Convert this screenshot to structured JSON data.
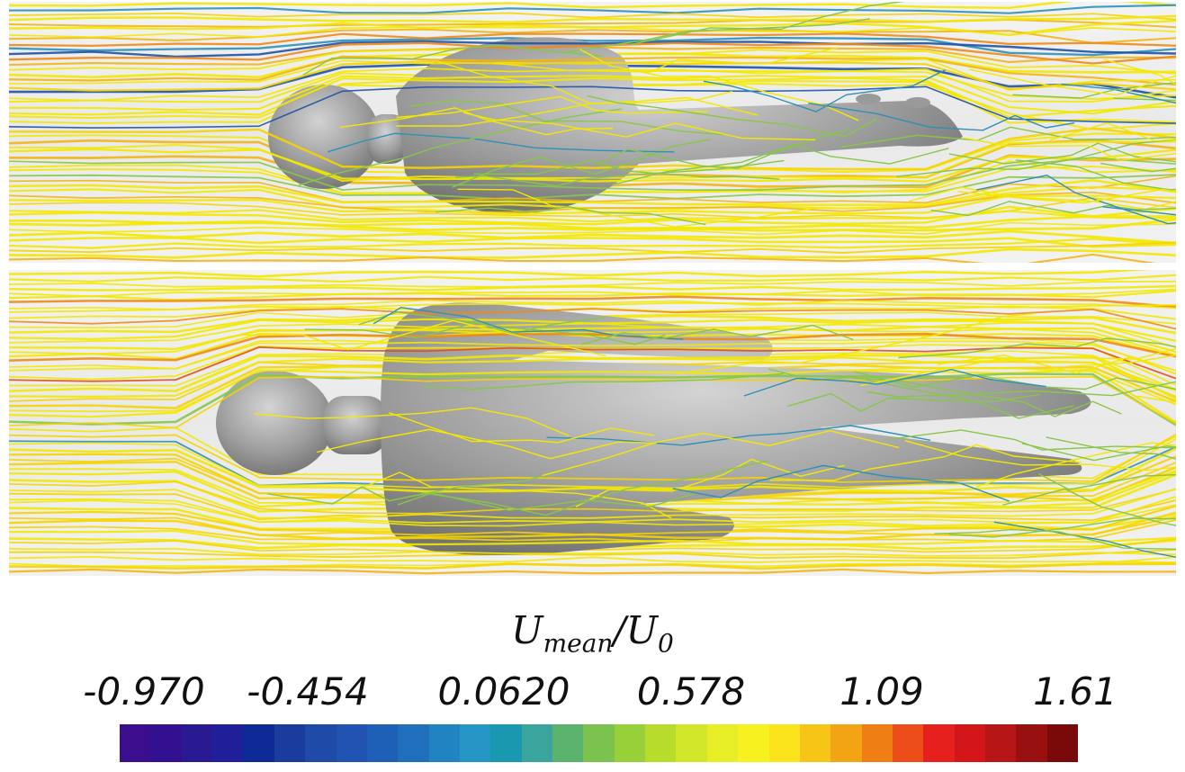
{
  "colorbar": {
    "title_main": "U",
    "title_sub": "mean",
    "title_sep": "/U",
    "title_sub2": "0",
    "ticks": [
      "-0.970",
      "-0.454",
      "0.0620",
      "0.578",
      "1.09",
      "1.61"
    ],
    "min": -0.97,
    "max": 1.61,
    "colors": [
      "#3a0e8c",
      "#33108f",
      "#2a1a92",
      "#201e98",
      "#0f2a96",
      "#1a3c9e",
      "#1f4aa8",
      "#2053b2",
      "#1e5fb8",
      "#1f6fbd",
      "#2283c2",
      "#2596c6",
      "#1a98b0",
      "#3aa59c",
      "#5bb46e",
      "#7cc24e",
      "#98d03a",
      "#b7dc2c",
      "#d2e62a",
      "#e7ee26",
      "#f7f21f",
      "#fbe41b",
      "#f7c516",
      "#f3a414",
      "#ef7e14",
      "#ed4d18",
      "#e6201c",
      "#d3161a",
      "#b71616",
      "#981010",
      "#7a0a0a"
    ]
  },
  "figure": {
    "background": "#ececec",
    "body_color": "#9a9a9a",
    "streamline_colors": [
      "#f3e800",
      "#f6d400",
      "#f3b414",
      "#ee8a16",
      "#e24d1b",
      "#88c64a",
      "#2f90b8",
      "#1f52a6"
    ]
  }
}
